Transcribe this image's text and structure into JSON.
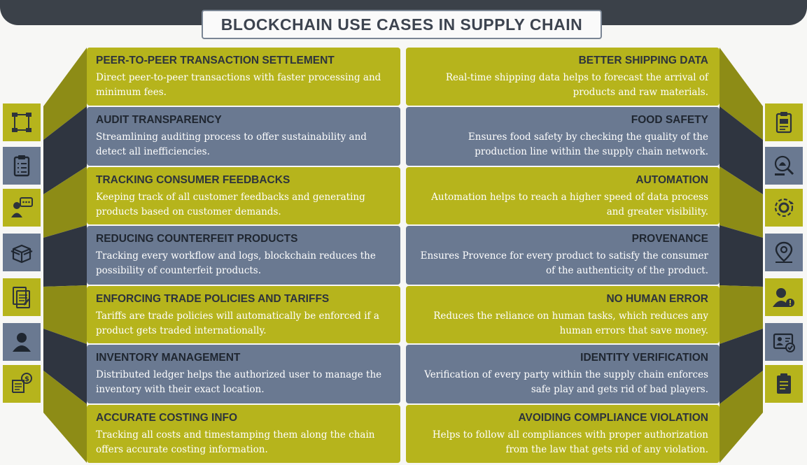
{
  "title": "BLOCKCHAIN USE CASES IN SUPPLY CHAIN",
  "left": [
    {
      "title": "PEER-TO-PEER TRANSACTION SETTLEMENT",
      "desc": "Direct peer-to-peer transactions with faster processing and minimum fees."
    },
    {
      "title": "AUDIT TRANSPARENCY",
      "desc": "Streamlining auditing process to offer sustainability and detect all inefficiencies."
    },
    {
      "title": "TRACKING CONSUMER FEEDBACKS",
      "desc": "Keeping track of all customer feedbacks and generating products based on customer demands."
    },
    {
      "title": "REDUCING COUNTERFEIT PRODUCTS",
      "desc": "Tracking every workflow and logs, blockchain reduces the possibility of counterfeit products."
    },
    {
      "title": "ENFORCING TRADE POLICIES AND TARIFFS",
      "desc": "Tariffs are trade policies will automatically be enforced if a product gets traded internationally."
    },
    {
      "title": "INVENTORY MANAGEMENT",
      "desc": "Distributed ledger helps the authorized user to manage the inventory with their exact location."
    },
    {
      "title": "ACCURATE COSTING INFO",
      "desc": "Tracking all costs and timestamping them along the chain offers accurate costing information."
    }
  ],
  "right": [
    {
      "title": "BETTER SHIPPING DATA",
      "desc": "Real-time shipping data helps to forecast the arrival of products and raw materials."
    },
    {
      "title": "FOOD SAFETY",
      "desc": "Ensures food safety by checking the quality of the production line within the supply chain network."
    },
    {
      "title": "AUTOMATION",
      "desc": "Automation helps to reach a higher speed of data process and greater visibility."
    },
    {
      "title": "PROVENANCE",
      "desc": "Ensures Provence for every product to satisfy the consumer of the authenticity of the product."
    },
    {
      "title": "NO HUMAN ERROR",
      "desc": "Reduces the reliance on human tasks, which reduces any human errors that save money."
    },
    {
      "title": "IDENTITY VERIFICATION",
      "desc": "Verification of every party within the supply chain enforces safe play and gets rid of bad players."
    },
    {
      "title": "AVOIDING COMPLIANCE VIOLATION",
      "desc": "Helps to follow all compliances with proper authorization from the law that gets rid of any violation."
    }
  ],
  "left_icons": [
    "network-nodes-icon",
    "clipboard-checklist-icon",
    "customer-feedback-icon",
    "package-box-icon",
    "document-policy-icon",
    "user-inventory-icon",
    "cost-receipt-icon"
  ],
  "right_icons": [
    "shipping-document-icon",
    "food-safety-icon",
    "automation-gear-icon",
    "location-pin-icon",
    "user-alert-icon",
    "id-card-check-icon",
    "compliance-document-icon"
  ],
  "colors": {
    "olive": "#b6b41c",
    "slate": "#6a7991",
    "dark": "#3b4149"
  }
}
